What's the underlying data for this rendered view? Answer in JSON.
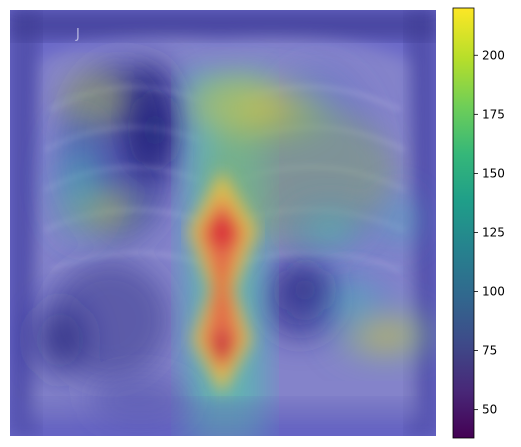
{
  "figure": {
    "image_description_icon": "chest-xray-with-attention-heatmap-overlay",
    "colormap": "viridis",
    "colorbar": {
      "min": 38,
      "max": 220,
      "ticks": [
        "50",
        "75",
        "100",
        "125",
        "150",
        "175",
        "200"
      ]
    },
    "colors": {
      "viridis": [
        "#440154",
        "#482878",
        "#3e4a89",
        "#31688e",
        "#26828e",
        "#1f9e89",
        "#35b779",
        "#6ece58",
        "#b5de2b",
        "#fde725"
      ],
      "overlay_cool": "#4a3ccc",
      "overlay_hot": "#e0303a"
    }
  }
}
